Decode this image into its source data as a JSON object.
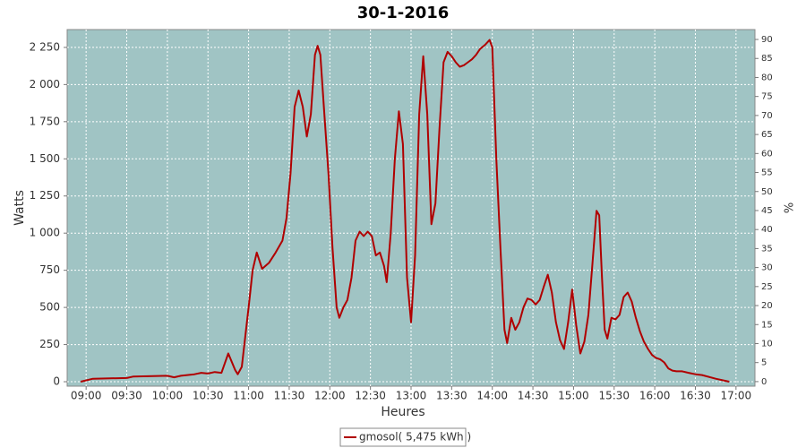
{
  "chart_data": {
    "type": "line",
    "title": "30-1-2016",
    "x_label": "Heures",
    "y_label": "Watts",
    "y2_label": "%",
    "x": [
      "08:56",
      "09:05",
      "09:30",
      "09:35",
      "10:00",
      "10:05",
      "10:10",
      "10:20",
      "10:25",
      "10:30",
      "10:35",
      "10:40",
      "10:45",
      "10:50",
      "10:52",
      "10:55",
      "11:00",
      "11:03",
      "11:06",
      "11:10",
      "11:15",
      "11:20",
      "11:25",
      "11:28",
      "11:31",
      "11:34",
      "11:37",
      "11:40",
      "11:43",
      "11:46",
      "11:49",
      "11:51",
      "11:53",
      "11:56",
      "11:59",
      "12:02",
      "12:05",
      "12:07",
      "12:10",
      "12:13",
      "12:16",
      "12:19",
      "12:22",
      "12:25",
      "12:28",
      "12:31",
      "12:34",
      "12:37",
      "12:40",
      "12:42",
      "12:45",
      "12:48",
      "12:51",
      "12:54",
      "12:57",
      "13:00",
      "13:03",
      "13:06",
      "13:09",
      "13:12",
      "13:15",
      "13:18",
      "13:21",
      "13:24",
      "13:27",
      "13:30",
      "13:33",
      "13:36",
      "13:39",
      "13:42",
      "13:45",
      "13:48",
      "13:51",
      "13:55",
      "13:58",
      "14:00",
      "14:03",
      "14:06",
      "14:09",
      "14:11",
      "14:14",
      "14:17",
      "14:20",
      "14:23",
      "14:26",
      "14:29",
      "14:32",
      "14:35",
      "14:38",
      "14:41",
      "14:44",
      "14:47",
      "14:50",
      "14:53",
      "14:56",
      "14:59",
      "15:02",
      "15:05",
      "15:08",
      "15:11",
      "15:14",
      "15:17",
      "15:19",
      "15:21",
      "15:23",
      "15:25",
      "15:28",
      "15:31",
      "15:34",
      "15:37",
      "15:40",
      "15:43",
      "15:46",
      "15:49",
      "15:52",
      "15:55",
      "15:58",
      "16:01",
      "16:04",
      "16:07",
      "16:10",
      "16:13",
      "16:16",
      "16:20",
      "16:25",
      "16:30",
      "16:35",
      "16:45",
      "16:55"
    ],
    "series": [
      {
        "name": "gmosol( 5,475 kWh )",
        "color": "#b00000",
        "values": [
          0,
          20,
          25,
          35,
          40,
          30,
          40,
          50,
          60,
          55,
          65,
          60,
          190,
          80,
          50,
          100,
          500,
          750,
          870,
          760,
          800,
          870,
          950,
          1100,
          1400,
          1850,
          1960,
          1850,
          1650,
          1800,
          2200,
          2260,
          2200,
          1800,
          1400,
          900,
          500,
          430,
          500,
          550,
          700,
          950,
          1010,
          980,
          1010,
          980,
          850,
          870,
          780,
          670,
          1000,
          1500,
          1820,
          1600,
          700,
          400,
          850,
          1800,
          2190,
          1800,
          1060,
          1200,
          1700,
          2150,
          2220,
          2190,
          2150,
          2120,
          2130,
          2150,
          2170,
          2200,
          2240,
          2270,
          2300,
          2250,
          1500,
          900,
          350,
          260,
          430,
          350,
          400,
          500,
          560,
          550,
          520,
          550,
          640,
          720,
          600,
          400,
          280,
          220,
          400,
          620,
          380,
          190,
          270,
          450,
          800,
          1150,
          1120,
          700,
          350,
          290,
          430,
          420,
          450,
          570,
          600,
          540,
          430,
          340,
          270,
          220,
          180,
          160,
          150,
          130,
          90,
          75,
          70,
          70,
          60,
          50,
          45,
          20,
          0
        ]
      }
    ],
    "xlim": [
      "08:46",
      "17:14"
    ],
    "xticks": [
      "09:00",
      "09:30",
      "10:00",
      "10:30",
      "11:00",
      "11:30",
      "12:00",
      "12:30",
      "13:00",
      "13:30",
      "14:00",
      "14:30",
      "15:00",
      "15:30",
      "16:00",
      "16:30",
      "17:00"
    ],
    "ylim": [
      -30,
      2370
    ],
    "yticks": [
      0,
      250,
      500,
      750,
      {
        "value": 1000,
        "label": "1 000"
      },
      {
        "value": 1250,
        "label": "1 250"
      },
      {
        "value": 1500,
        "label": "1 500"
      },
      {
        "value": 1750,
        "label": "1 750"
      },
      {
        "value": 2000,
        "label": "2 000"
      },
      {
        "value": 2250,
        "label": "2 250"
      }
    ],
    "y2lim": [
      -1.2,
      92.6
    ],
    "y2ticks": [
      0,
      5,
      10,
      15,
      20,
      25,
      30,
      35,
      40,
      45,
      50,
      55,
      60,
      65,
      70,
      75,
      80,
      85,
      90
    ],
    "grid": true,
    "background": "#a0c4c4"
  }
}
